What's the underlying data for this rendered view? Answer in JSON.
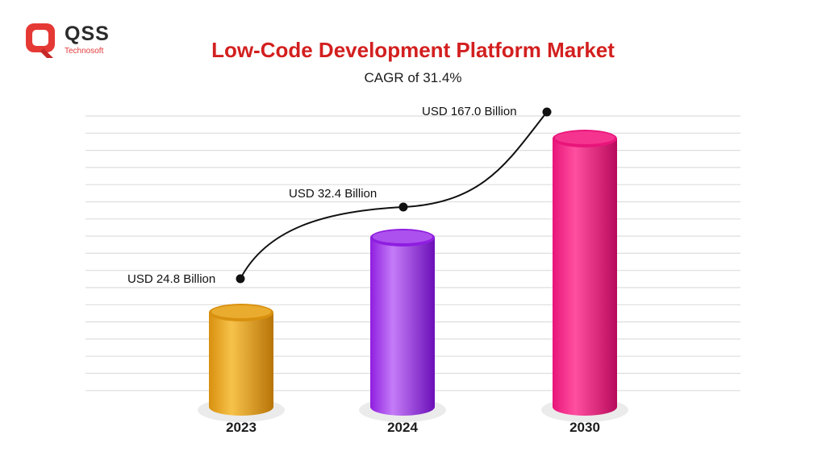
{
  "brand": {
    "name": "QSS",
    "tagline": "Technosoft",
    "colors": {
      "mark": "#e53935",
      "name": "#2b2b2b"
    }
  },
  "chart_data": {
    "type": "bar",
    "title": "Low-Code Development Platform Market",
    "subtitle": "CAGR of 31.4%",
    "categories": [
      "2023",
      "2024",
      "2030"
    ],
    "values": [
      24.8,
      32.4,
      167.0
    ],
    "data_labels": [
      "USD 24.8 Billion",
      "USD 32.4 Billion",
      "USD 167.0 Billion"
    ],
    "unit": "USD Billion",
    "bar_colors": [
      [
        "#b87408",
        "#f7c24a",
        "#d8900e"
      ],
      [
        "#6b0fb8",
        "#c57cf7",
        "#8f1ee0"
      ],
      [
        "#b80a5c",
        "#ff4fa0",
        "#e8157a"
      ]
    ],
    "grid": true,
    "trend_line": true,
    "xlabel": "",
    "ylabel": ""
  }
}
